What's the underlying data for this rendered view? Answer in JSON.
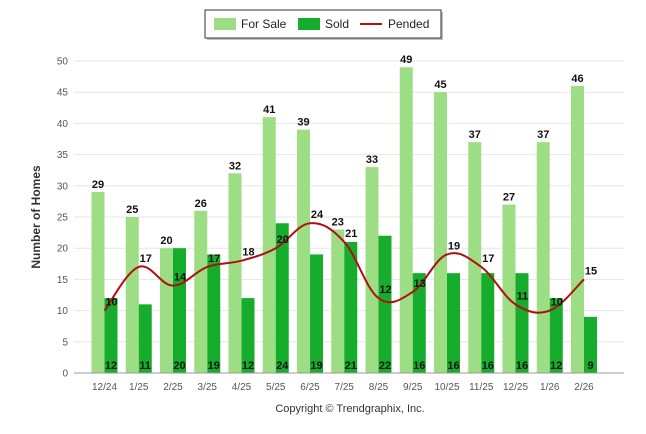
{
  "chart_data": {
    "type": "bar",
    "categories": [
      "12/24",
      "1/25",
      "2/25",
      "3/25",
      "4/25",
      "5/25",
      "6/25",
      "7/25",
      "8/25",
      "9/25",
      "10/25",
      "11/25",
      "12/25",
      "1/26",
      "2/26"
    ],
    "series": [
      {
        "name": "For Sale",
        "type": "bar",
        "color": "#9dde84",
        "values": [
          29,
          25,
          20,
          26,
          32,
          41,
          39,
          23,
          33,
          49,
          45,
          37,
          27,
          37,
          46
        ]
      },
      {
        "name": "Sold",
        "type": "bar",
        "color": "#15ad2b",
        "values": [
          12,
          11,
          20,
          19,
          12,
          24,
          19,
          21,
          22,
          16,
          16,
          16,
          16,
          12,
          9
        ]
      },
      {
        "name": "Pended",
        "type": "line",
        "color": "#b01010",
        "values": [
          10,
          17,
          14,
          17,
          18,
          20,
          24,
          21,
          12,
          13,
          19,
          17,
          11,
          10,
          15
        ]
      }
    ],
    "ylabel": "Number of Homes",
    "xlabel": "",
    "ylim": [
      0,
      50
    ],
    "yticks": [
      0,
      5,
      10,
      15,
      20,
      25,
      30,
      35,
      40,
      45,
      50
    ],
    "grid": true,
    "legend_position": "top-center",
    "credit": "Copyright © Trendgraphix, Inc."
  }
}
